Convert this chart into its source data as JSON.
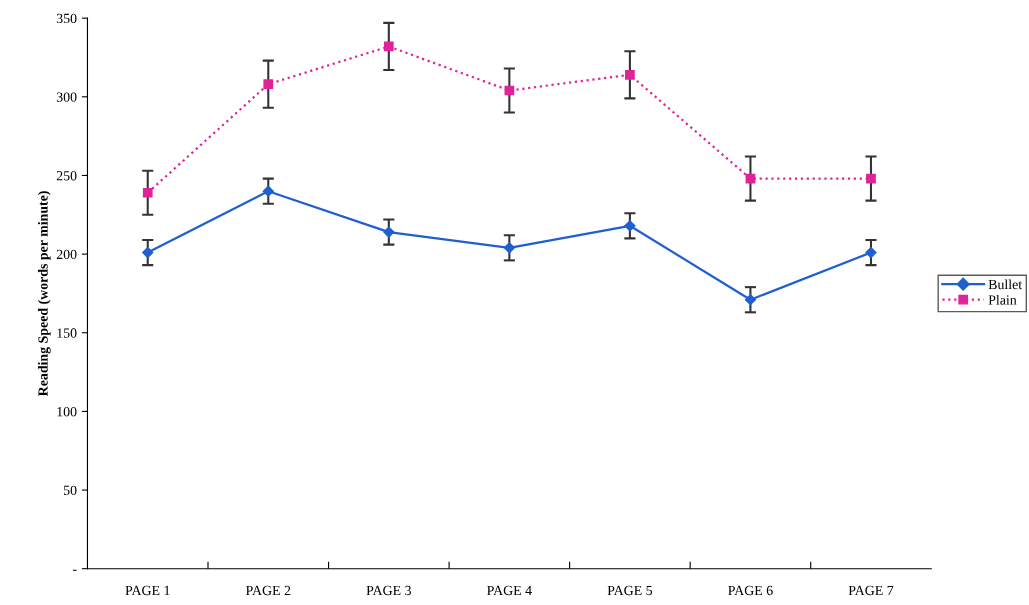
{
  "chart_data": {
    "type": "line",
    "ylabel": "Reading Speed (words per minute)",
    "categories": [
      "PAGE 1",
      "PAGE 2",
      "PAGE 3",
      "PAGE 4",
      "PAGE 5",
      "PAGE 6",
      "PAGE 7"
    ],
    "series": [
      {
        "name": "Bullet",
        "color": "#1f5fd0",
        "marker": "diamond",
        "line_style": "solid",
        "values": [
          201,
          240,
          214,
          204,
          218,
          171,
          201
        ],
        "errors": [
          8,
          8,
          8,
          8,
          8,
          8,
          8
        ]
      },
      {
        "name": "Plain",
        "color": "#e0239a",
        "marker": "square",
        "line_style": "dotted",
        "values": [
          239,
          308,
          332,
          304,
          314,
          248,
          248
        ],
        "errors": [
          14,
          15,
          15,
          14,
          15,
          14,
          14
        ]
      }
    ],
    "ylim": [
      0,
      350
    ],
    "yticks": [
      {
        "value": 0,
        "label": "-"
      },
      50,
      100,
      150,
      200,
      250,
      300,
      350
    ],
    "grid": false,
    "legend": "right"
  }
}
